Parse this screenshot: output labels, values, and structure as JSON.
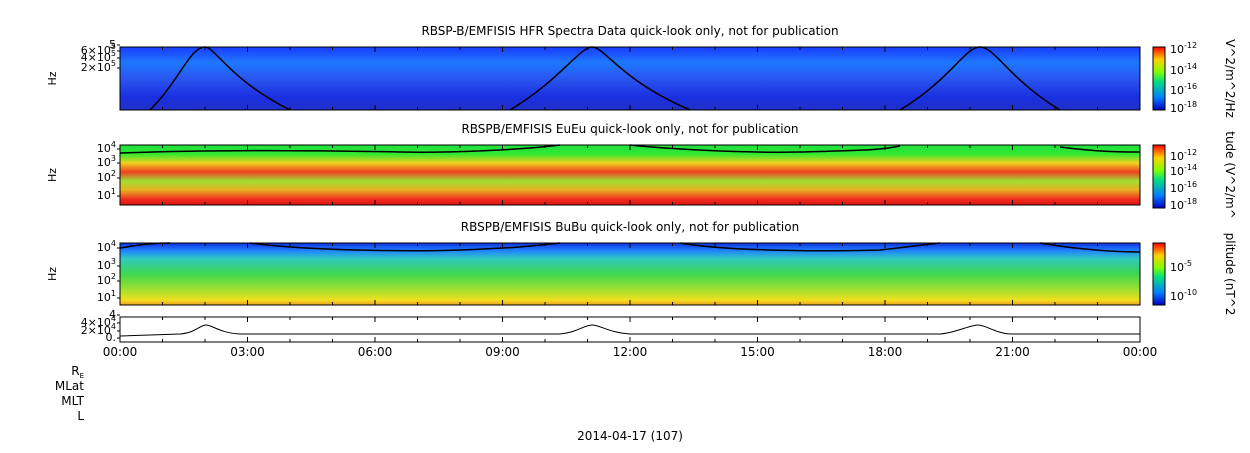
{
  "panels": [
    {
      "title": "RBSP-B/EMFISIS  HFR Spectra Data quick-look only, not for publication",
      "ylabel": "Hz",
      "yticks": [
        {
          "base": "5",
          "exp": ""
        },
        {
          "base": "6×10",
          "exp": "5"
        },
        {
          "base": "4×10",
          "exp": "5"
        },
        {
          "base": "2×10",
          "exp": "5"
        }
      ],
      "colorbar_label": "V^2/m^2/Hz",
      "colorbar_ticks": [
        {
          "base": "10",
          "exp": "-12"
        },
        {
          "base": "10",
          "exp": "-14"
        },
        {
          "base": "10",
          "exp": "-16"
        },
        {
          "base": "10",
          "exp": "-18"
        }
      ]
    },
    {
      "title": "RBSPB/EMFISIS  EuEu quick-look only, not for publication",
      "ylabel": "Hz",
      "yticks": [
        {
          "base": "10",
          "exp": "4"
        },
        {
          "base": "10",
          "exp": "3"
        },
        {
          "base": "10",
          "exp": "2"
        },
        {
          "base": "10",
          "exp": "1"
        }
      ],
      "colorbar_label": "tude (V^2/m^",
      "colorbar_ticks": [
        {
          "base": "10",
          "exp": "-12"
        },
        {
          "base": "10",
          "exp": "-14"
        },
        {
          "base": "10",
          "exp": "-16"
        },
        {
          "base": "10",
          "exp": "-18"
        }
      ]
    },
    {
      "title": "RBSPB/EMFISIS  BuBu quick-look only, not for publication",
      "ylabel": "Hz",
      "yticks": [
        {
          "base": "10",
          "exp": "4"
        },
        {
          "base": "10",
          "exp": "3"
        },
        {
          "base": "10",
          "exp": "2"
        },
        {
          "base": "10",
          "exp": "1"
        }
      ],
      "colorbar_label": "plitude (nT^2",
      "colorbar_ticks": [
        {
          "base": "10",
          "exp": "-5"
        },
        {
          "base": "10",
          "exp": "-10"
        }
      ]
    },
    {
      "yticks": [
        {
          "base": "4",
          "exp": ""
        },
        {
          "base": "4×10",
          "exp": "4"
        },
        {
          "base": "2×10",
          "exp": "4"
        },
        {
          "base": "0.",
          "exp": ""
        }
      ]
    }
  ],
  "xticks": [
    "00:00",
    "03:00",
    "06:00",
    "09:00",
    "12:00",
    "15:00",
    "18:00",
    "21:00",
    "00:00"
  ],
  "ephemeris_labels": [
    {
      "base": "R",
      "sub": "E"
    },
    {
      "base": "MLat",
      "sub": ""
    },
    {
      "base": "MLT",
      "sub": ""
    },
    {
      "base": "L",
      "sub": ""
    }
  ],
  "date": "2014-04-17 (107)"
}
